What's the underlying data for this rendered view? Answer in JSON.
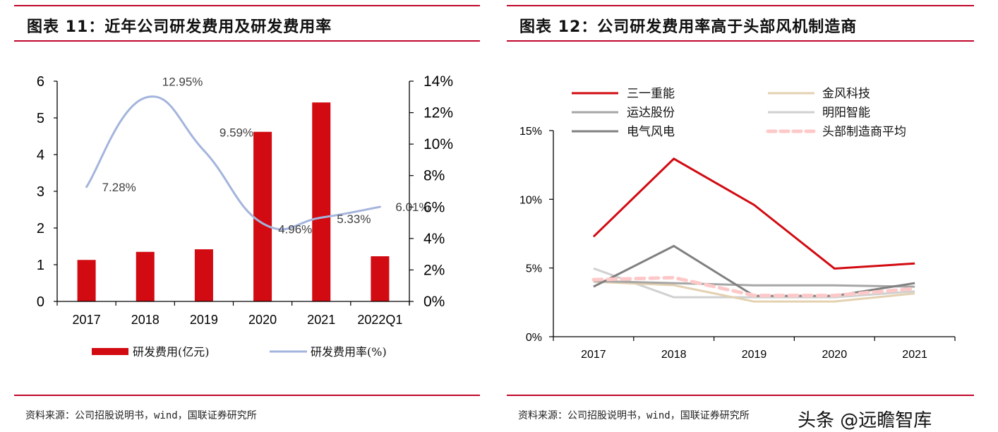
{
  "left": {
    "title": "图表 11：近年公司研发费用及研发费用率",
    "source": "资料来源：公司招股说明书，wind，国联证券研究所"
  },
  "right": {
    "title": "图表 12：公司研发费用率高于头部风机制造商",
    "source": "资料来源：公司招股说明书，wind，国联证券研究所"
  },
  "watermark": "头条 @远瞻智库",
  "colors": {
    "accent_rule": "#c0062b",
    "bar": "#d20a11",
    "rate_line": "#a4b4dc"
  },
  "chart_data": [
    {
      "type": "bar",
      "title": "近年公司研发费用及研发费用率",
      "categories": [
        "2017",
        "2018",
        "2019",
        "2020",
        "2021",
        "2022Q1"
      ],
      "ylim": [
        0,
        6
      ],
      "yticks": [
        "0",
        "1",
        "2",
        "3",
        "4",
        "5",
        "6"
      ],
      "y2lim": [
        0,
        14
      ],
      "y2ticks": [
        "0%",
        "2%",
        "4%",
        "6%",
        "8%",
        "10%",
        "12%",
        "14%"
      ],
      "series": [
        {
          "name": "研发费用(亿元)",
          "type": "bar",
          "axis": "left",
          "color": "#d20a11",
          "values": [
            1.13,
            1.35,
            1.42,
            4.62,
            5.42,
            1.23
          ]
        },
        {
          "name": "研发费用率(%)",
          "type": "line",
          "axis": "right",
          "color": "#a4b4dc",
          "smooth": true,
          "values": [
            7.28,
            12.95,
            9.59,
            4.96,
            5.33,
            6.01
          ],
          "labels": [
            "7.28%",
            "12.95%",
            "9.59%",
            "4.96%",
            "5.33%",
            "6.01%"
          ]
        }
      ],
      "legend": "bottom"
    },
    {
      "type": "line",
      "title": "公司研发费用率高于头部风机制造商",
      "categories": [
        "2017",
        "2018",
        "2019",
        "2020",
        "2021"
      ],
      "ylim": [
        0,
        15
      ],
      "yticks": [
        "0%",
        "5%",
        "10%",
        "15%"
      ],
      "series": [
        {
          "name": "三一重能",
          "color": "#d20a11",
          "dash": false,
          "values": [
            7.28,
            12.95,
            9.59,
            4.96,
            5.33
          ]
        },
        {
          "name": "金风科技",
          "color": "#e3d1b0",
          "dash": false,
          "values": [
            4.0,
            3.75,
            2.56,
            2.56,
            3.15
          ]
        },
        {
          "name": "运达股份",
          "color": "#a6a6a6",
          "dash": false,
          "values": [
            4.05,
            3.9,
            3.74,
            3.74,
            3.64
          ]
        },
        {
          "name": "明阳智能",
          "color": "#d0d0d0",
          "dash": false,
          "values": [
            4.97,
            2.87,
            2.87,
            2.87,
            3.3
          ]
        },
        {
          "name": "电气风电",
          "color": "#808080",
          "dash": false,
          "values": [
            3.64,
            6.6,
            2.97,
            2.97,
            3.9
          ]
        },
        {
          "name": "头部制造商平均",
          "color": "#ffc8c8",
          "dash": true,
          "values": [
            4.15,
            4.3,
            3.0,
            3.0,
            3.5
          ]
        }
      ],
      "legend": "top"
    }
  ]
}
